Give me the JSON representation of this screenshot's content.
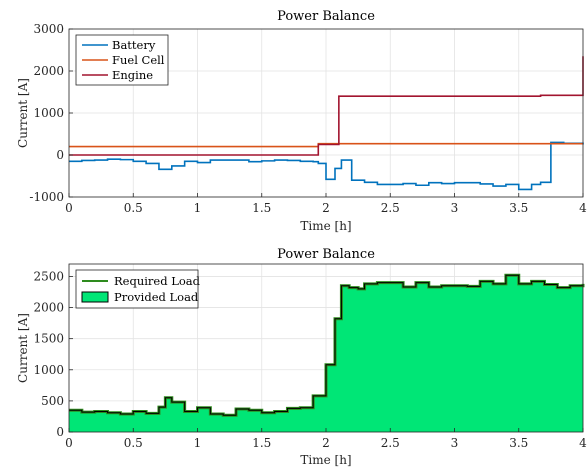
{
  "chart_data": [
    {
      "type": "line",
      "title": "Power Balance",
      "xlabel": "Time [h]",
      "ylabel": "Current [A]",
      "xlim": [
        0,
        4
      ],
      "ylim": [
        -1000,
        3000
      ],
      "xticks": [
        0,
        0.5,
        1,
        1.5,
        2,
        2.5,
        3,
        3.5,
        4
      ],
      "xtick_labels": [
        "0",
        "0.5",
        "1",
        "1.5",
        "2",
        "2.5",
        "3",
        "3.5",
        "4"
      ],
      "yticks": [
        -1000,
        0,
        1000,
        2000,
        3000
      ],
      "ytick_labels": [
        "-1000",
        "0",
        "1000",
        "2000",
        "3000"
      ],
      "grid": true,
      "legend_position": "top-left",
      "step": true,
      "series": [
        {
          "name": "Battery",
          "color": "#0072BD",
          "x": [
            0,
            0.1,
            0.2,
            0.3,
            0.4,
            0.5,
            0.6,
            0.7,
            0.8,
            0.9,
            1.0,
            1.1,
            1.2,
            1.3,
            1.4,
            1.5,
            1.6,
            1.7,
            1.8,
            1.9,
            1.94,
            2.0,
            2.07,
            2.12,
            2.2,
            2.3,
            2.4,
            2.5,
            2.6,
            2.7,
            2.8,
            2.9,
            3.0,
            3.1,
            3.2,
            3.3,
            3.4,
            3.5,
            3.6,
            3.67,
            3.75,
            3.85,
            4.0
          ],
          "y": [
            -150,
            -130,
            -120,
            -100,
            -110,
            -150,
            -200,
            -340,
            -260,
            -150,
            -180,
            -120,
            -120,
            -120,
            -160,
            -140,
            -120,
            -130,
            -150,
            -160,
            -200,
            -580,
            -320,
            -120,
            -600,
            -650,
            -700,
            -700,
            -680,
            -720,
            -660,
            -680,
            -660,
            -660,
            -690,
            -740,
            -700,
            -820,
            -700,
            -650,
            300,
            280,
            250
          ]
        },
        {
          "name": "Fuel Cell",
          "color": "#D95319",
          "x": [
            0,
            1.93,
            1.94,
            4.0
          ],
          "y": [
            200,
            200,
            270,
            270
          ]
        },
        {
          "name": "Engine",
          "color": "#A2142F",
          "x": [
            0,
            1.94,
            2.1,
            3.67,
            4.0
          ],
          "y": [
            0,
            250,
            1400,
            1420,
            2350
          ]
        }
      ]
    },
    {
      "type": "area",
      "title": "Power Balance",
      "xlabel": "Time [h]",
      "ylabel": "Current [A]",
      "xlim": [
        0,
        4
      ],
      "ylim": [
        0,
        2700
      ],
      "xticks": [
        0,
        0.5,
        1,
        1.5,
        2,
        2.5,
        3,
        3.5,
        4
      ],
      "xtick_labels": [
        "0",
        "0.5",
        "1",
        "1.5",
        "2",
        "2.5",
        "3",
        "3.5",
        "4"
      ],
      "yticks": [
        0,
        500,
        1000,
        1500,
        2000,
        2500
      ],
      "ytick_labels": [
        "0",
        "500",
        "1000",
        "1500",
        "2000",
        "2500"
      ],
      "grid": true,
      "legend_position": "top-left",
      "step": true,
      "series": [
        {
          "name": "Required Load",
          "color": "#2E8B1E",
          "kind": "line"
        },
        {
          "name": "Provided Load",
          "color": "#00E676",
          "kind": "area"
        }
      ],
      "x": [
        0,
        0.1,
        0.2,
        0.3,
        0.4,
        0.5,
        0.6,
        0.7,
        0.75,
        0.8,
        0.9,
        1.0,
        1.1,
        1.2,
        1.3,
        1.4,
        1.5,
        1.6,
        1.7,
        1.8,
        1.9,
        2.0,
        2.07,
        2.12,
        2.18,
        2.25,
        2.3,
        2.4,
        2.5,
        2.6,
        2.7,
        2.8,
        2.9,
        3.0,
        3.1,
        3.2,
        3.3,
        3.4,
        3.5,
        3.6,
        3.7,
        3.8,
        3.9,
        4.0
      ],
      "y": [
        350,
        320,
        330,
        310,
        290,
        330,
        300,
        400,
        550,
        480,
        330,
        390,
        290,
        270,
        370,
        350,
        310,
        330,
        380,
        390,
        580,
        1080,
        1820,
        2350,
        2320,
        2300,
        2380,
        2400,
        2400,
        2330,
        2400,
        2330,
        2350,
        2350,
        2340,
        2420,
        2380,
        2520,
        2380,
        2420,
        2370,
        2320,
        2350,
        2380
      ]
    }
  ]
}
